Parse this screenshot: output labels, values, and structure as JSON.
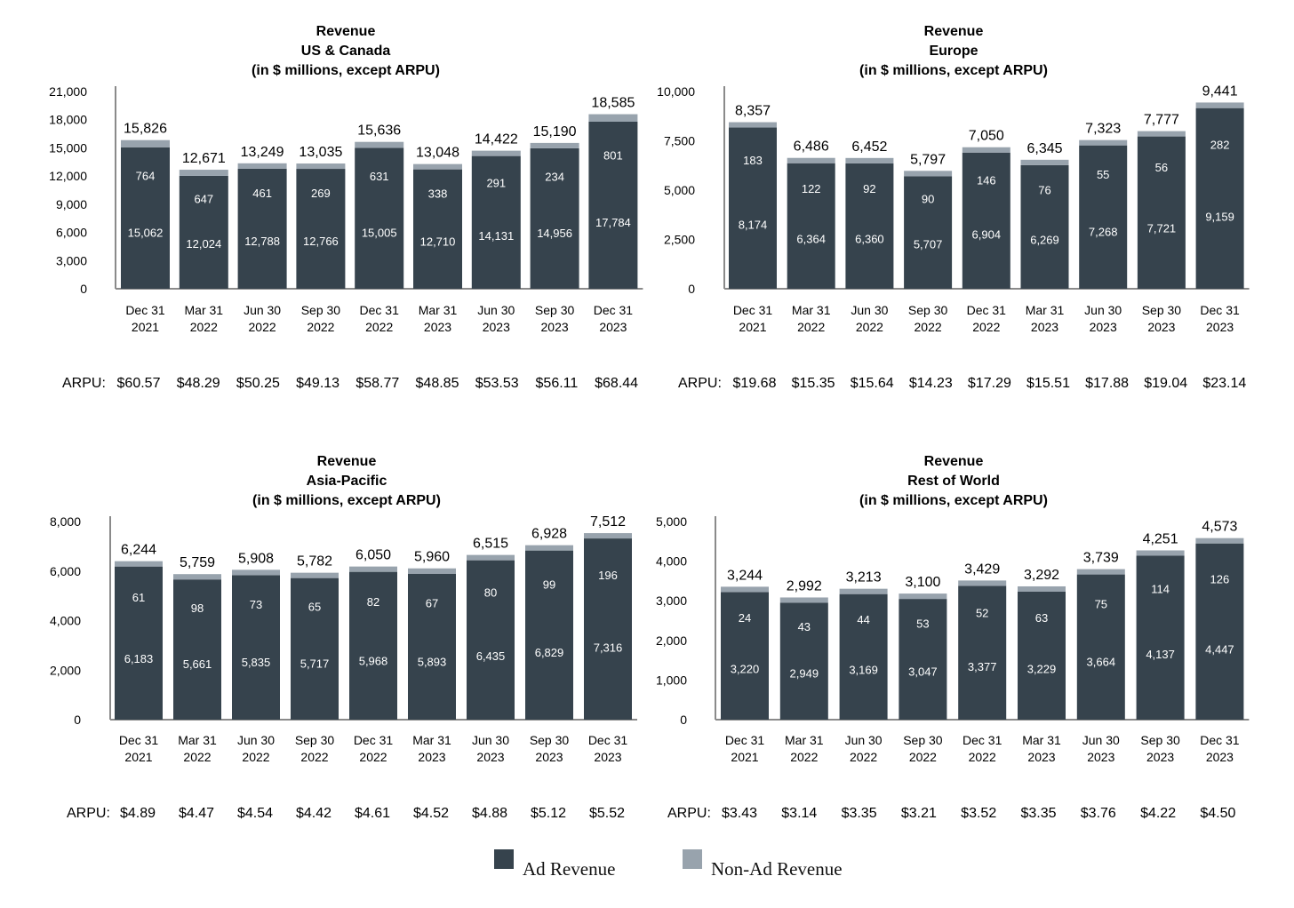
{
  "colors": {
    "ad": "#36434d",
    "non_ad": "#98a3ad",
    "axis": "#8a8a8a",
    "bar_text": "#ffffff"
  },
  "arpu_label": "ARPU:",
  "chart_data": [
    {
      "type": "bar",
      "stacked": true,
      "title": [
        "Revenue",
        "US & Canada",
        "(in $ millions, except ARPU)"
      ],
      "categories": [
        [
          "Dec 31",
          "2021"
        ],
        [
          "Mar 31",
          "2022"
        ],
        [
          "Jun 30",
          "2022"
        ],
        [
          "Sep 30",
          "2022"
        ],
        [
          "Dec 31",
          "2022"
        ],
        [
          "Mar 31",
          "2023"
        ],
        [
          "Jun 30",
          "2023"
        ],
        [
          "Sep 30",
          "2023"
        ],
        [
          "Dec 31",
          "2023"
        ]
      ],
      "ylim": [
        0,
        21000
      ],
      "yticks": [
        "0",
        "3,000",
        "6,000",
        "9,000",
        "12,000",
        "15,000",
        "18,000",
        "21,000"
      ],
      "ytick_values": [
        0,
        3000,
        6000,
        9000,
        12000,
        15000,
        18000,
        21000
      ],
      "series": [
        {
          "name": "Ad Revenue",
          "values": [
            15062,
            12024,
            12788,
            12766,
            15005,
            12710,
            14131,
            14956,
            17784
          ],
          "labels": [
            "15,062",
            "12,024",
            "12,788",
            "12,766",
            "15,005",
            "12,710",
            "14,131",
            "14,956",
            "17,784"
          ]
        },
        {
          "name": "Non-Ad Revenue",
          "values": [
            764,
            647,
            461,
            269,
            631,
            338,
            291,
            234,
            801
          ],
          "labels": [
            "764",
            "647",
            "461",
            "269",
            "631",
            "338",
            "291",
            "234",
            "801"
          ]
        }
      ],
      "totals": [
        "15,826",
        "12,671",
        "13,249",
        "13,035",
        "15,636",
        "13,048",
        "14,422",
        "15,190",
        "18,585"
      ],
      "arpu": [
        "$60.57",
        "$48.29",
        "$50.25",
        "$49.13",
        "$58.77",
        "$48.85",
        "$53.53",
        "$56.11",
        "$68.44"
      ]
    },
    {
      "type": "bar",
      "stacked": true,
      "title": [
        "Revenue",
        "Europe",
        "(in $ millions, except ARPU)"
      ],
      "categories": [
        [
          "Dec 31",
          "2021"
        ],
        [
          "Mar 31",
          "2022"
        ],
        [
          "Jun 30",
          "2022"
        ],
        [
          "Sep 30",
          "2022"
        ],
        [
          "Dec 31",
          "2022"
        ],
        [
          "Mar 31",
          "2023"
        ],
        [
          "Jun 30",
          "2023"
        ],
        [
          "Sep 30",
          "2023"
        ],
        [
          "Dec 31",
          "2023"
        ]
      ],
      "ylim": [
        0,
        10000
      ],
      "yticks": [
        "0",
        "2,500",
        "5,000",
        "7,500",
        "10,000"
      ],
      "ytick_values": [
        0,
        2500,
        5000,
        7500,
        10000
      ],
      "series": [
        {
          "name": "Ad Revenue",
          "values": [
            8174,
            6364,
            6360,
            5707,
            6904,
            6269,
            7268,
            7721,
            9159
          ],
          "labels": [
            "8,174",
            "6,364",
            "6,360",
            "5,707",
            "6,904",
            "6,269",
            "7,268",
            "7,721",
            "9,159"
          ]
        },
        {
          "name": "Non-Ad Revenue",
          "values": [
            183,
            122,
            92,
            90,
            146,
            76,
            55,
            56,
            282
          ],
          "labels": [
            "183",
            "122",
            "92",
            "90",
            "146",
            "76",
            "55",
            "56",
            "282"
          ]
        }
      ],
      "totals": [
        "8,357",
        "6,486",
        "6,452",
        "5,797",
        "7,050",
        "6,345",
        "7,323",
        "7,777",
        "9,441"
      ],
      "arpu": [
        "$19.68",
        "$15.35",
        "$15.64",
        "$14.23",
        "$17.29",
        "$15.51",
        "$17.88",
        "$19.04",
        "$23.14"
      ]
    },
    {
      "type": "bar",
      "stacked": true,
      "title": [
        "Revenue",
        "Asia-Pacific",
        "(in $ millions, except ARPU)"
      ],
      "categories": [
        [
          "Dec 31",
          "2021"
        ],
        [
          "Mar 31",
          "2022"
        ],
        [
          "Jun 30",
          "2022"
        ],
        [
          "Sep 30",
          "2022"
        ],
        [
          "Dec 31",
          "2022"
        ],
        [
          "Mar 31",
          "2023"
        ],
        [
          "Jun 30",
          "2023"
        ],
        [
          "Sep 30",
          "2023"
        ],
        [
          "Dec 31",
          "2023"
        ]
      ],
      "ylim": [
        0,
        8000
      ],
      "yticks": [
        "0",
        "2,000",
        "4,000",
        "6,000",
        "8,000"
      ],
      "ytick_values": [
        0,
        2000,
        4000,
        6000,
        8000
      ],
      "series": [
        {
          "name": "Ad Revenue",
          "values": [
            6183,
            5661,
            5835,
            5717,
            5968,
            5893,
            6435,
            6829,
            7316
          ],
          "labels": [
            "6,183",
            "5,661",
            "5,835",
            "5,717",
            "5,968",
            "5,893",
            "6,435",
            "6,829",
            "7,316"
          ]
        },
        {
          "name": "Non-Ad Revenue",
          "values": [
            61,
            98,
            73,
            65,
            82,
            67,
            80,
            99,
            196
          ],
          "labels": [
            "61",
            "98",
            "73",
            "65",
            "82",
            "67",
            "80",
            "99",
            "196"
          ]
        }
      ],
      "totals": [
        "6,244",
        "5,759",
        "5,908",
        "5,782",
        "6,050",
        "5,960",
        "6,515",
        "6,928",
        "7,512"
      ],
      "arpu": [
        "$4.89",
        "$4.47",
        "$4.54",
        "$4.42",
        "$4.61",
        "$4.52",
        "$4.88",
        "$5.12",
        "$5.52"
      ]
    },
    {
      "type": "bar",
      "stacked": true,
      "title": [
        "Revenue",
        "Rest of World",
        "(in $ millions, except ARPU)"
      ],
      "categories": [
        [
          "Dec 31",
          "2021"
        ],
        [
          "Mar 31",
          "2022"
        ],
        [
          "Jun 30",
          "2022"
        ],
        [
          "Sep 30",
          "2022"
        ],
        [
          "Dec 31",
          "2022"
        ],
        [
          "Mar 31",
          "2023"
        ],
        [
          "Jun 30",
          "2023"
        ],
        [
          "Sep 30",
          "2023"
        ],
        [
          "Dec 31",
          "2023"
        ]
      ],
      "ylim": [
        0,
        5000
      ],
      "yticks": [
        "0",
        "1,000",
        "2,000",
        "3,000",
        "4,000",
        "5,000"
      ],
      "ytick_values": [
        0,
        1000,
        2000,
        3000,
        4000,
        5000
      ],
      "series": [
        {
          "name": "Ad Revenue",
          "values": [
            3220,
            2949,
            3169,
            3047,
            3377,
            3229,
            3664,
            4137,
            4447
          ],
          "labels": [
            "3,220",
            "2,949",
            "3,169",
            "3,047",
            "3,377",
            "3,229",
            "3,664",
            "4,137",
            "4,447"
          ]
        },
        {
          "name": "Non-Ad Revenue",
          "values": [
            24,
            43,
            44,
            53,
            52,
            63,
            75,
            114,
            126
          ],
          "labels": [
            "24",
            "43",
            "44",
            "53",
            "52",
            "63",
            "75",
            "114",
            "126"
          ]
        }
      ],
      "totals": [
        "3,244",
        "2,992",
        "3,213",
        "3,100",
        "3,429",
        "3,292",
        "3,739",
        "4,251",
        "4,573"
      ],
      "arpu": [
        "$3.43",
        "$3.14",
        "$3.35",
        "$3.21",
        "$3.52",
        "$3.35",
        "$3.76",
        "$4.22",
        "$4.50"
      ]
    }
  ],
  "legend": [
    {
      "label": "Ad Revenue",
      "color": "#36434d"
    },
    {
      "label": "Non-Ad Revenue",
      "color": "#98a3ad"
    }
  ]
}
